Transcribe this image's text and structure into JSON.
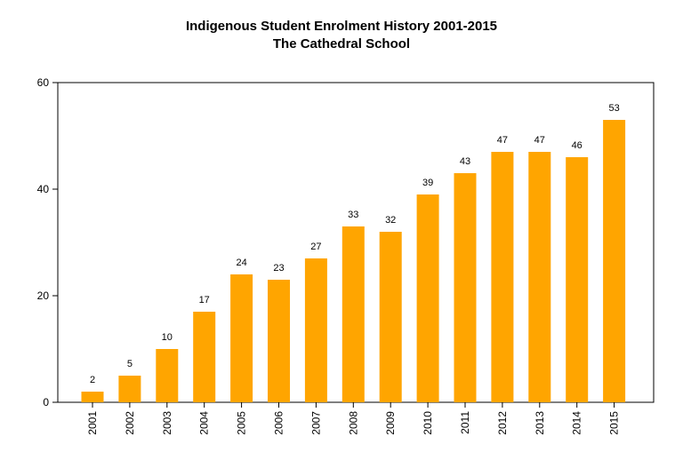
{
  "chart_data": {
    "type": "bar",
    "title": "Indigenous Student Enrolment History 2001-2015",
    "subtitle": "The Cathedral School",
    "xlabel": "",
    "ylabel": "",
    "categories": [
      "2001",
      "2002",
      "2003",
      "2004",
      "2005",
      "2006",
      "2007",
      "2008",
      "2009",
      "2010",
      "2011",
      "2012",
      "2013",
      "2014",
      "2015"
    ],
    "values": [
      2,
      5,
      10,
      17,
      24,
      23,
      27,
      33,
      32,
      39,
      43,
      47,
      47,
      46,
      53
    ],
    "ylim": [
      0,
      60
    ],
    "yticks": [
      0,
      20,
      40,
      60
    ],
    "bar_color": "#FFA500",
    "grid": false,
    "legend": "none"
  }
}
